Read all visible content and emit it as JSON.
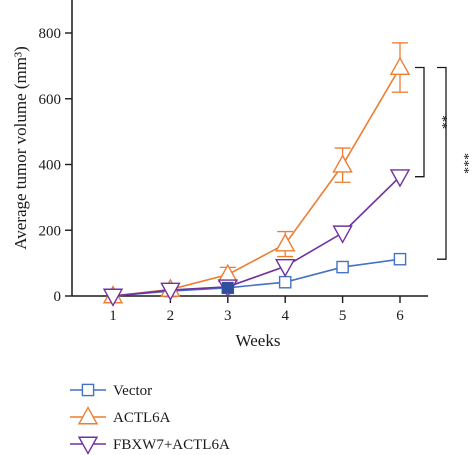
{
  "chart_data": {
    "type": "line",
    "xlabel": "Weeks",
    "ylabel": "Average tumor volume (mm³)",
    "title": "",
    "x": [
      1,
      2,
      3,
      4,
      5,
      6
    ],
    "xlim": [
      0.5,
      6.5
    ],
    "ylim": [
      0,
      850
    ],
    "x_ticks": [
      "1",
      "2",
      "3",
      "4",
      "5",
      "6"
    ],
    "y_ticks": [
      "0",
      "200",
      "400",
      "600",
      "800"
    ],
    "y_tick_values": [
      0,
      200,
      400,
      600,
      800
    ],
    "grid": false,
    "legend_position": "bottom",
    "series": [
      {
        "name": "Vector",
        "color": "#4472c4",
        "marker": "square",
        "values": [
          0,
          15,
          25,
          42,
          88,
          112
        ],
        "errors": [
          0,
          0,
          0,
          0,
          0,
          0
        ]
      },
      {
        "name": "ACTL6A",
        "color": "#ed7d31",
        "marker": "triangle-up",
        "values": [
          0,
          20,
          65,
          158,
          398,
          695
        ],
        "errors": [
          0,
          0,
          22,
          38,
          52,
          75
        ]
      },
      {
        "name": "FBXW7+ACTL6A",
        "color": "#7030a0",
        "marker": "triangle-down",
        "values": [
          0,
          18,
          28,
          90,
          192,
          363
        ],
        "errors": [
          0,
          0,
          0,
          0,
          0,
          0
        ]
      }
    ],
    "significance": [
      {
        "label": "**",
        "from_series": 1,
        "to_series": 2,
        "at_x": 6
      },
      {
        "label": "***",
        "from_series": 1,
        "to_series": 0,
        "at_x": 6
      }
    ],
    "highlight_point": {
      "series": 0,
      "x": 3,
      "value": 25,
      "color": "#2e4f9e"
    }
  }
}
